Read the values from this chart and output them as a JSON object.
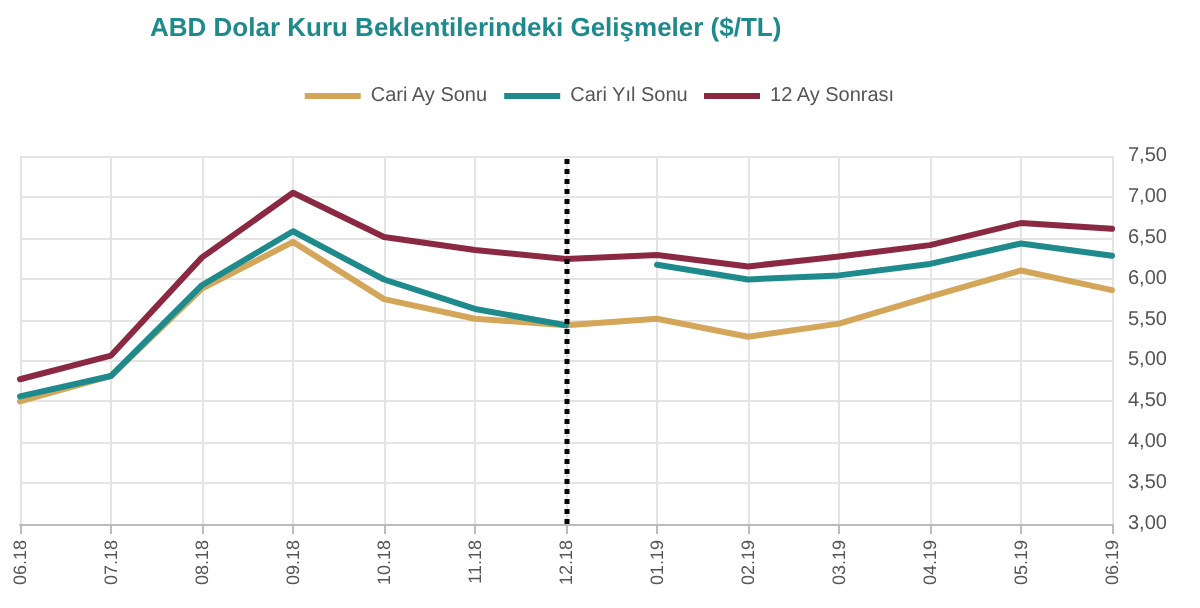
{
  "chart_data": {
    "type": "line",
    "title": "ABD Dolar Kuru Beklentilerindeki Gelişmeler ($/TL)",
    "categories": [
      "06.18",
      "07.18",
      "08.18",
      "09.18",
      "10.18",
      "11.18",
      "12.18",
      "01.19",
      "02.19",
      "03.19",
      "04.19",
      "05.19",
      "06.19"
    ],
    "series": [
      {
        "name": "Cari Ay Sonu",
        "color": "#d4a65a",
        "values": [
          4.5,
          4.81,
          5.88,
          6.45,
          5.75,
          5.51,
          5.43,
          5.51,
          5.29,
          5.45,
          5.78,
          6.1,
          5.86
        ]
      },
      {
        "name": "Cari Yıl Sonu",
        "color": "#1f8a8c",
        "values": [
          4.56,
          4.81,
          5.92,
          6.58,
          5.99,
          5.63,
          5.43,
          null,
          null,
          null,
          null,
          null,
          null
        ]
      },
      {
        "color": "#1f8a8c",
        "values": [
          null,
          null,
          null,
          null,
          null,
          null,
          null,
          6.17,
          5.99,
          6.04,
          6.18,
          6.43,
          6.28
        ]
      },
      {
        "name": "12 Ay Sonrası",
        "color": "#8b2942",
        "values": [
          4.77,
          5.06,
          6.26,
          7.05,
          6.51,
          6.35,
          6.24,
          6.29,
          6.15,
          6.27,
          6.41,
          6.68,
          6.61
        ]
      }
    ],
    "ylim": [
      3,
      7.5
    ],
    "yticks": [
      {
        "value": 3,
        "label": "3,00"
      },
      {
        "value": 3.5,
        "label": "3,50"
      },
      {
        "value": 4,
        "label": "4,00"
      },
      {
        "value": 4.5,
        "label": "4,50"
      },
      {
        "value": 5,
        "label": "5,00"
      },
      {
        "value": 5.5,
        "label": "5,50"
      },
      {
        "value": 6,
        "label": "6,00"
      },
      {
        "value": 6.5,
        "label": "6,50"
      },
      {
        "value": 7,
        "label": "7,00"
      },
      {
        "value": 7.5,
        "label": "7,50"
      }
    ],
    "ref_lines": [
      {
        "axis": "x",
        "value": "12.18",
        "color": "#000000",
        "line_style": "dotted"
      }
    ],
    "grid": true,
    "legend": "top",
    "marker": "none",
    "line_style": "solid"
  }
}
